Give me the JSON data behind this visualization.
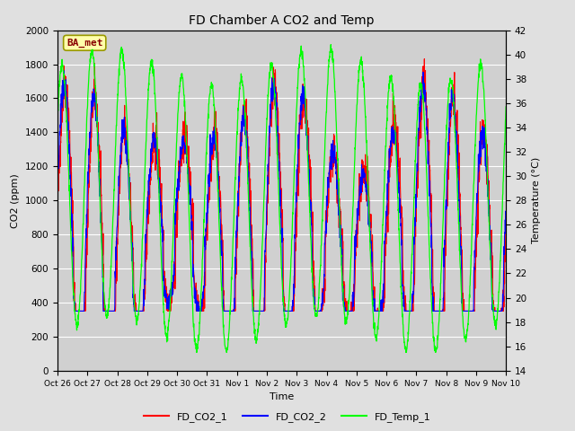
{
  "title": "FD Chamber A CO2 and Temp",
  "xlabel": "Time",
  "ylabel_left": "CO2 (ppm)",
  "ylabel_right": "Temperature (°C)",
  "legend_label": "BA_met",
  "series": [
    "FD_CO2_1",
    "FD_CO2_2",
    "FD_Temp_1"
  ],
  "colors": [
    "red",
    "blue",
    "lime"
  ],
  "ylim_left": [
    0,
    2000
  ],
  "ylim_right": [
    14,
    42
  ],
  "xtick_labels": [
    "Oct 26",
    "Oct 27",
    "Oct 28",
    "Oct 29",
    "Oct 30",
    "Oct 31",
    "Nov 1",
    "Nov 2",
    "Nov 3",
    "Nov 4",
    "Nov 5",
    "Nov 6",
    "Nov 7",
    "Nov 8",
    "Nov 9",
    "Nov 10"
  ],
  "bg_color": "#e0e0e0",
  "plot_bg_color": "#d0d0d0",
  "grid_color": "#ffffff",
  "legend_box_facecolor": "#ffffaa",
  "legend_box_edgecolor": "#999900",
  "legend_text_color": "#880000",
  "n_days": 15,
  "points_per_day": 144,
  "seed": 42
}
